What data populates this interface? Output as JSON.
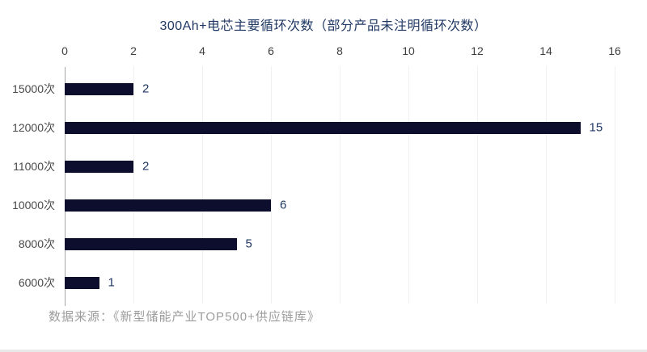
{
  "title": "300Ah+电芯主要循环次数（部分产品未注明循环次数）",
  "source_note": "数据来源：《新型储能产业TOP500+供应链库》",
  "colors": {
    "bar": "#0d0d2e",
    "data_label": "#1f3864",
    "title": "#1f3864",
    "axis_line": "#a6a6a6",
    "tick_label": "#3f3f3f",
    "category_label": "#4a4a4a",
    "source_text": "#9c9c9c",
    "gridline": "#f0f0f0",
    "background": "#ffffff"
  },
  "chart_data": {
    "type": "bar",
    "orientation": "horizontal",
    "title": "300Ah+电芯主要循环次数（部分产品未注明循环次数）",
    "categories": [
      "15000次",
      "12000次",
      "11000次",
      "10000次",
      "8000次",
      "6000次"
    ],
    "values": [
      2,
      15,
      2,
      6,
      5,
      1
    ],
    "xlabel": "",
    "ylabel": "",
    "xlim": [
      0,
      16
    ],
    "xticks": [
      0,
      2,
      4,
      6,
      8,
      10,
      12,
      14,
      16
    ],
    "xaxis_position": "top",
    "grid": true,
    "data_labels": [
      2,
      15,
      2,
      6,
      5,
      1
    ],
    "legend": false
  }
}
